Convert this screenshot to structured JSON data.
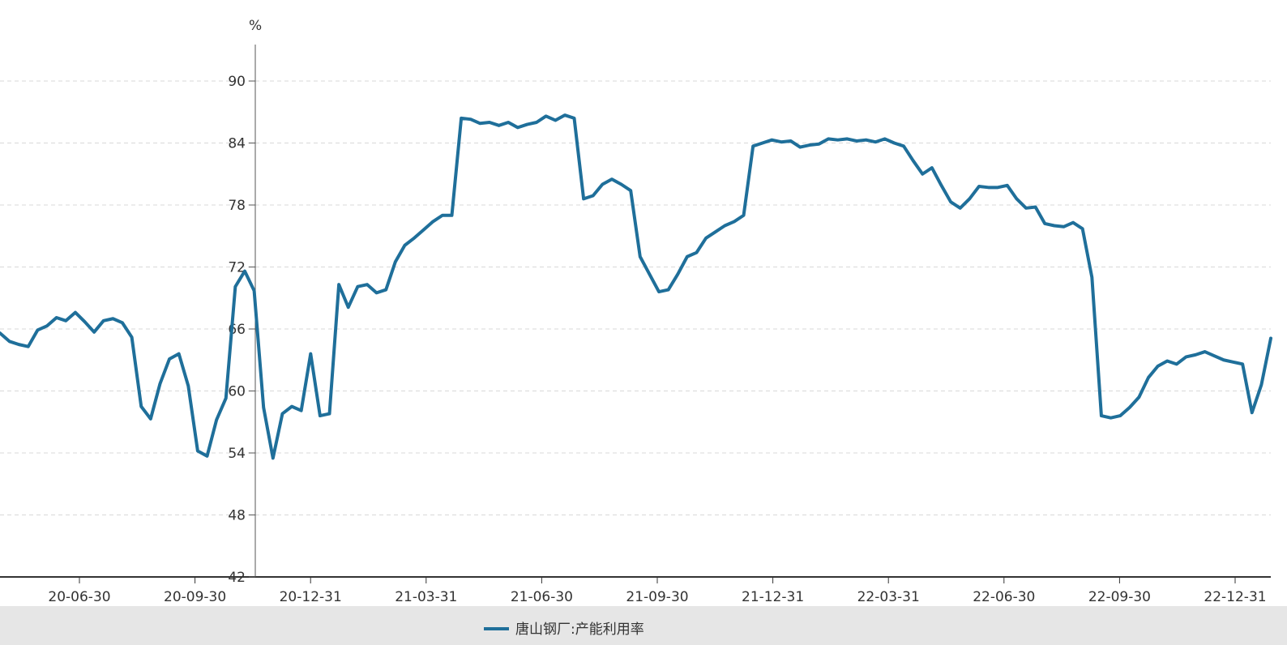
{
  "chart_data": {
    "type": "line",
    "ylabel": "%",
    "ylim": [
      42,
      90
    ],
    "yticks": [
      90,
      84,
      78,
      72,
      66,
      60,
      54,
      48,
      42
    ],
    "x_tick_labels": [
      "20-06-30",
      "20-09-30",
      "20-12-31",
      "21-03-31",
      "21-06-30",
      "21-09-30",
      "21-12-31",
      "22-03-31",
      "22-06-30",
      "22-09-30",
      "22-12-31"
    ],
    "grid": true,
    "legend_position": "bottom",
    "series": [
      {
        "name": "唐山钢厂:产能利用率",
        "color": "#1f6f9a",
        "values": [
          65.6,
          64.8,
          64.5,
          64.3,
          65.9,
          66.3,
          67.1,
          66.8,
          67.6,
          66.7,
          65.7,
          66.8,
          67.0,
          66.6,
          65.2,
          58.5,
          57.3,
          60.7,
          63.1,
          63.6,
          60.5,
          54.2,
          53.7,
          57.2,
          59.3,
          70.1,
          71.6,
          69.7,
          58.4,
          53.5,
          57.8,
          58.5,
          58.1,
          63.6,
          57.6,
          57.8,
          70.3,
          68.1,
          70.1,
          70.3,
          69.5,
          69.8,
          72.5,
          74.1,
          74.8,
          75.6,
          76.4,
          77.0,
          77.0,
          86.4,
          86.3,
          85.9,
          86.0,
          85.7,
          86.0,
          85.5,
          85.8,
          86.0,
          86.6,
          86.2,
          86.7,
          86.4,
          78.6,
          78.9,
          80.0,
          80.5,
          80.0,
          79.4,
          73.0,
          71.3,
          69.6,
          69.8,
          71.3,
          73.0,
          73.4,
          74.8,
          75.4,
          76.0,
          76.4,
          77.0,
          83.7,
          84.0,
          84.3,
          84.1,
          84.2,
          83.6,
          83.8,
          83.9,
          84.4,
          84.3,
          84.4,
          84.2,
          84.3,
          84.1,
          84.4,
          84.0,
          83.7,
          82.3,
          81.0,
          81.6,
          79.9,
          78.3,
          77.7,
          78.6,
          79.8,
          79.7,
          79.7,
          79.9,
          78.6,
          77.7,
          77.8,
          76.2,
          76.0,
          75.9,
          76.3,
          75.7,
          71.0,
          57.6,
          57.4,
          57.6,
          58.4,
          59.4,
          61.3,
          62.4,
          62.9,
          62.6,
          63.3,
          63.5,
          63.8,
          63.4,
          63.0,
          62.8,
          62.6,
          57.9,
          60.6,
          65.1
        ]
      }
    ]
  }
}
